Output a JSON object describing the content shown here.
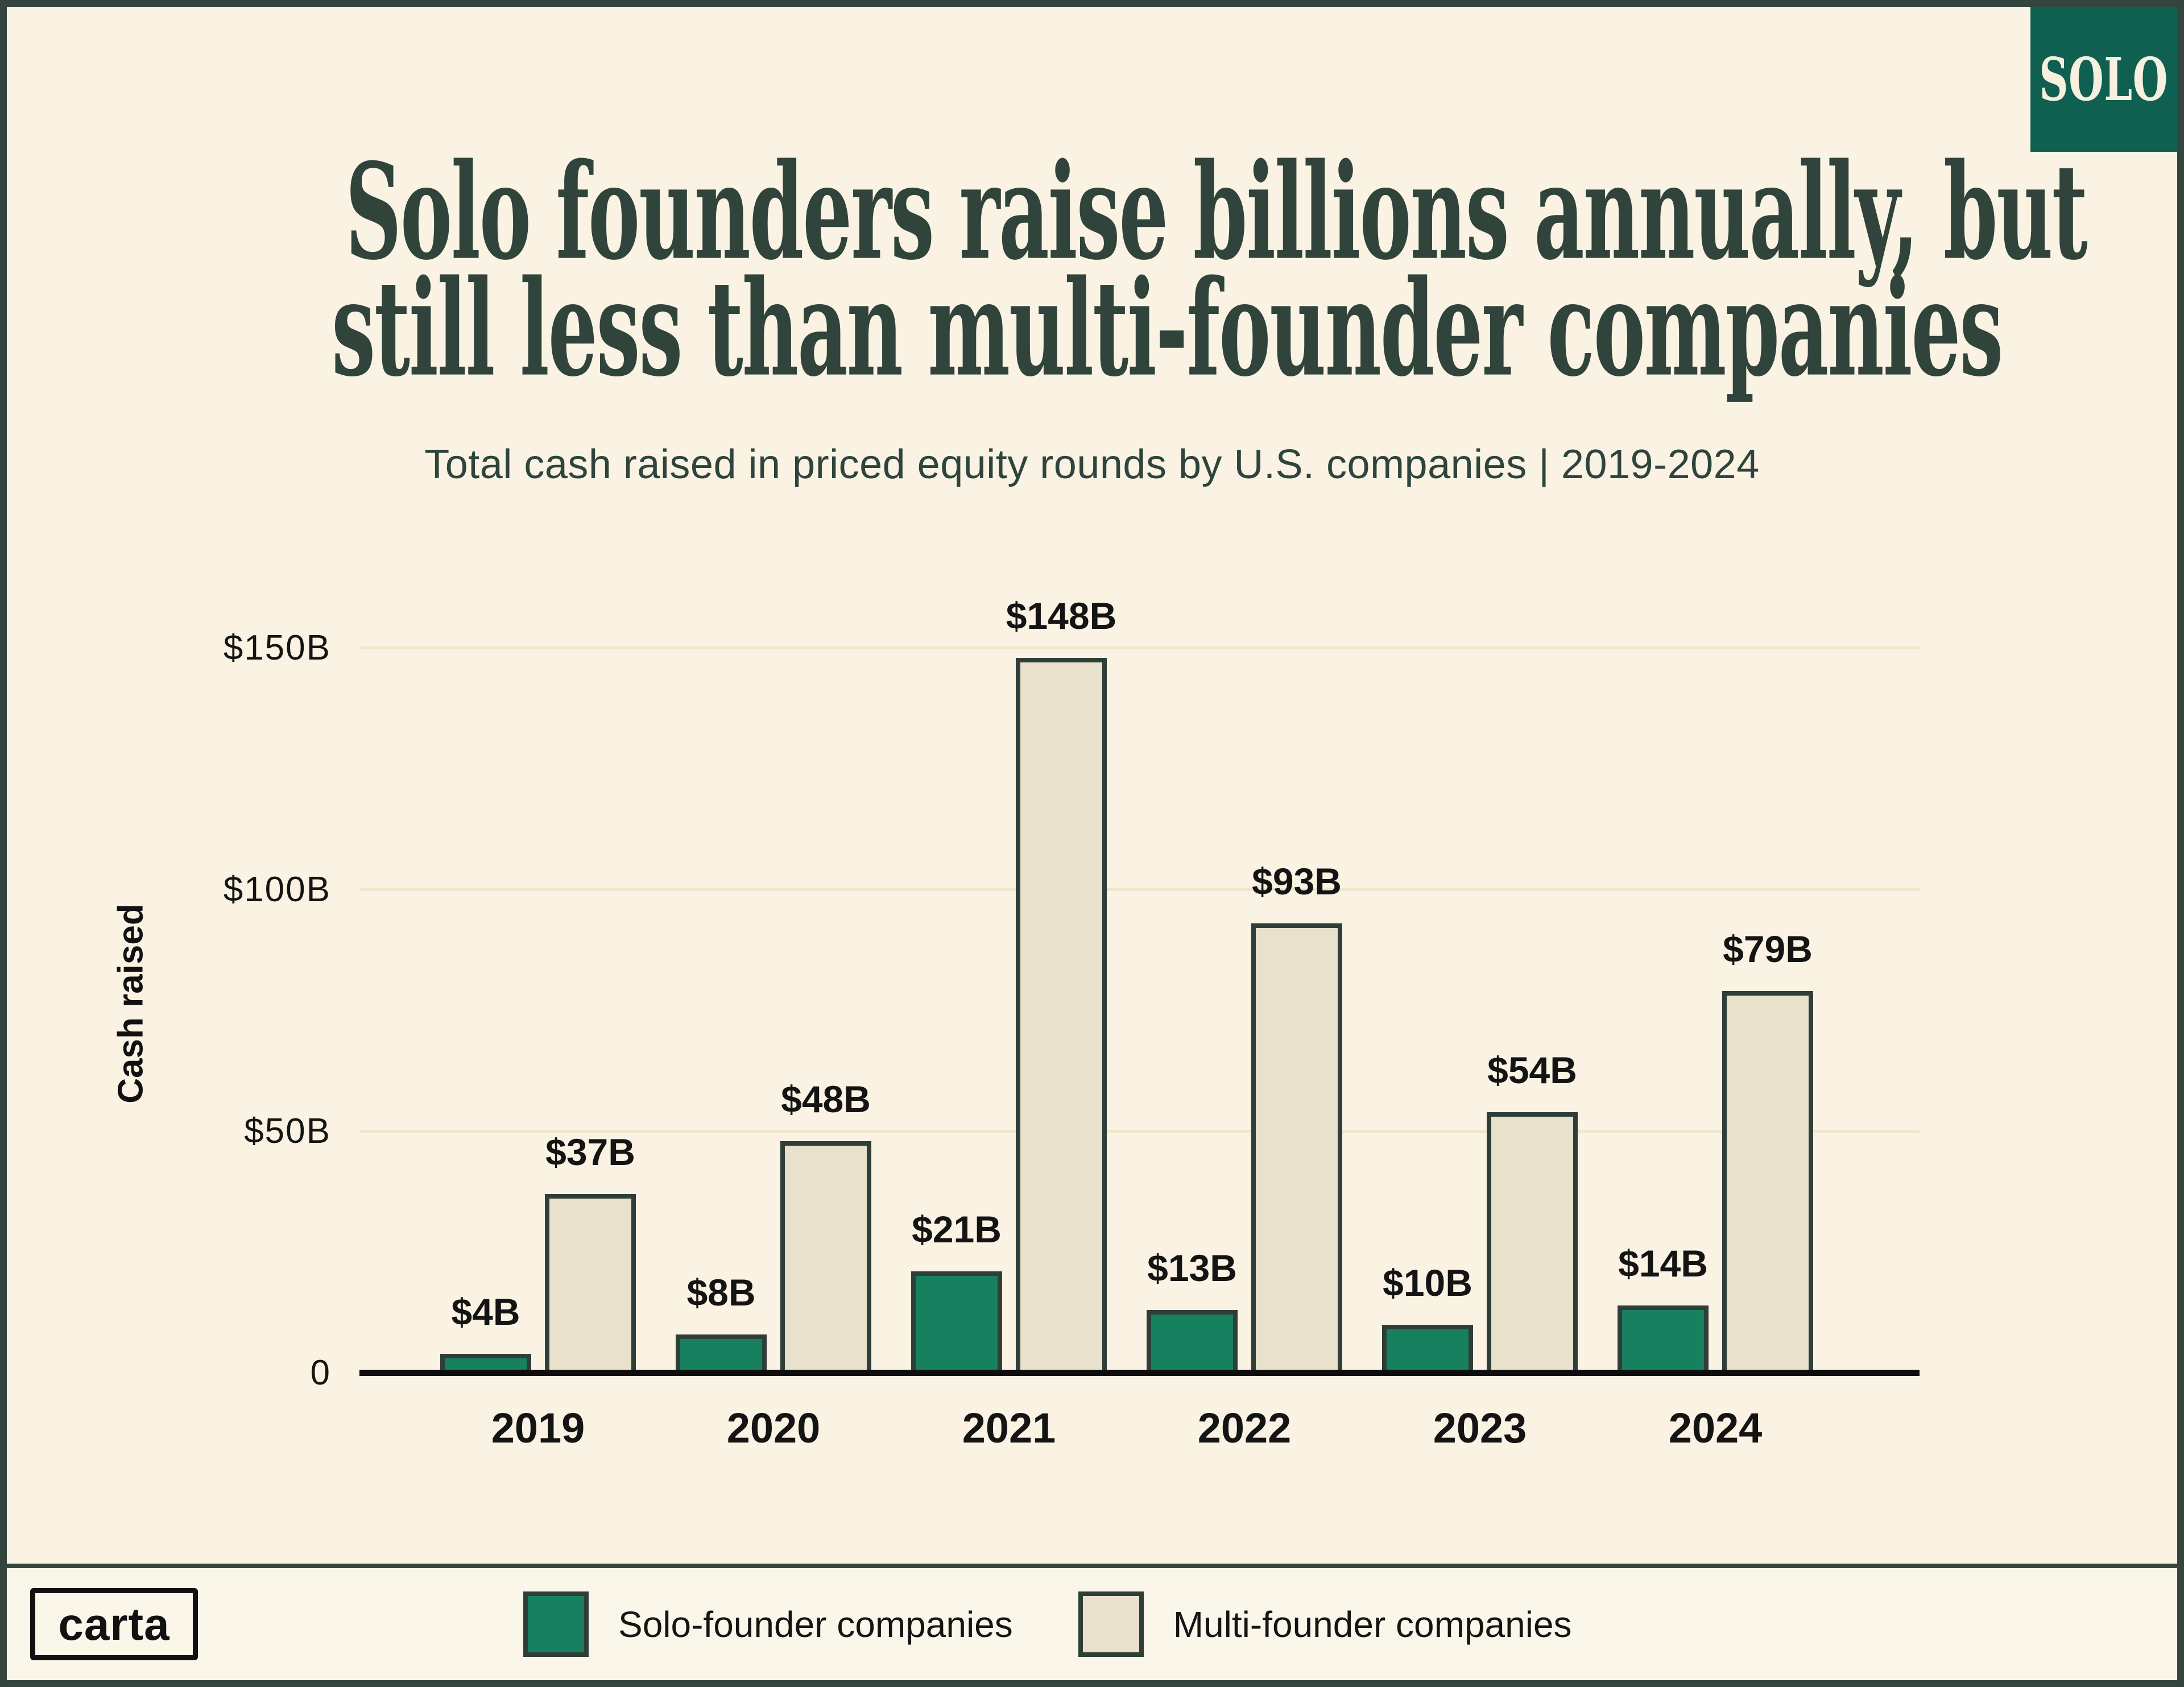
{
  "badge": {
    "label": "SOLO"
  },
  "header": {
    "title_line1": "Solo founders raise billions annually, but",
    "title_line2": "still less than multi-founder companies",
    "subtitle": "Total cash raised in priced equity rounds by U.S. companies | 2019-2024"
  },
  "chart_data": {
    "type": "bar",
    "title": "Solo founders raise billions annually, but still less than multi-founder companies",
    "subtitle": "Total cash raised in priced equity rounds by U.S. companies | 2019-2024",
    "categories": [
      "2019",
      "2020",
      "2021",
      "2022",
      "2023",
      "2024"
    ],
    "series": [
      {
        "name": "Solo-founder companies",
        "color": "#17805F",
        "values": [
          4,
          8,
          21,
          13,
          10,
          14
        ],
        "labels": [
          "$4B",
          "$8B",
          "$21B",
          "$13B",
          "$10B",
          "$14B"
        ]
      },
      {
        "name": "Multi-founder companies",
        "color": "#E8E1CC",
        "values": [
          37,
          48,
          148,
          93,
          54,
          79
        ],
        "labels": [
          "$37B",
          "$48B",
          "$148B",
          "$93B",
          "$54B",
          "$79B"
        ]
      }
    ],
    "xlabel": "",
    "ylabel": "Cash raised",
    "yticks": [
      {
        "label": "$150B",
        "value": 150
      },
      {
        "label": "$100B",
        "value": 100
      },
      {
        "label": "$50B",
        "value": 50
      },
      {
        "label": "0",
        "value": 0
      }
    ],
    "ylim": [
      0,
      160
    ],
    "grid": true,
    "legend_position": "bottom"
  },
  "footer": {
    "logo_label": "carta"
  },
  "colors": {
    "background": "#FAF3E3",
    "footer_background": "#FBF6EA",
    "frame_border": "#34453E",
    "title_text": "#31443C",
    "subtitle_text": "#2E443C",
    "label_text": "#141414",
    "solo_bar": "#17805F",
    "multi_bar": "#E8E1CC",
    "bar_outline": "#2F3E38",
    "gridline": "#F0E6CB",
    "axis_line": "#0D0D0D",
    "badge_background": "#0F6051",
    "badge_text": "#F7F0DF"
  }
}
